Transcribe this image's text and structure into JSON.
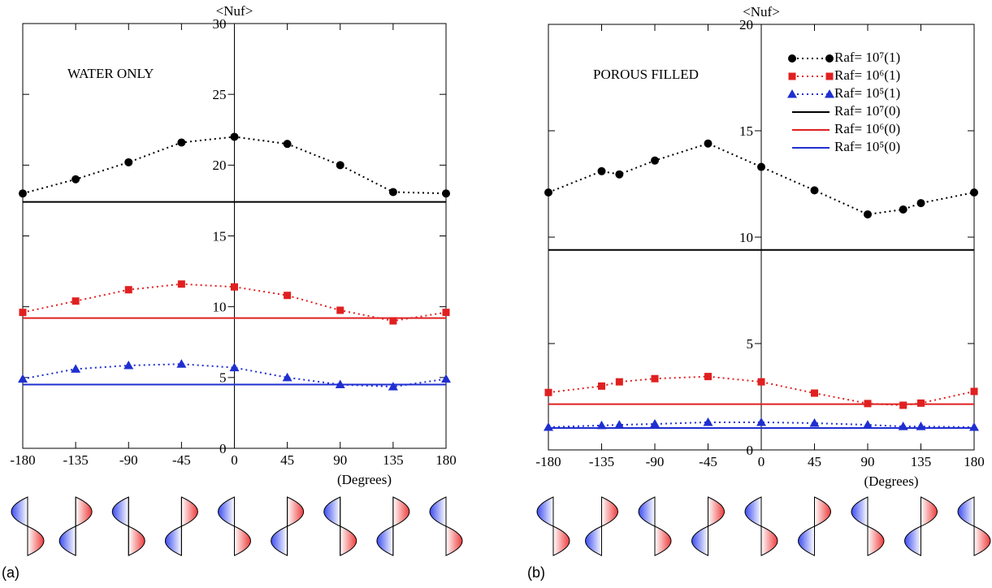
{
  "chart_data": [
    {
      "type": "line",
      "title": "<Nuf>",
      "xlabel": "(Degrees)",
      "annotation": "WATER ONLY",
      "panel_label": "(a)",
      "xlim": [
        -180,
        180
      ],
      "ylim": [
        0,
        30
      ],
      "xticks": [
        -180,
        -135,
        -90,
        -45,
        0,
        45,
        90,
        135,
        180
      ],
      "yticks": [
        0,
        5,
        10,
        15,
        20,
        25,
        30
      ],
      "x": [
        -180,
        -135,
        -90,
        -45,
        0,
        45,
        90,
        135,
        180
      ],
      "series": [
        {
          "color": "#000000",
          "marker": "circle",
          "values": [
            18.0,
            19.0,
            20.2,
            21.6,
            22.0,
            21.5,
            20.0,
            18.1,
            18.0
          ]
        },
        {
          "color": "#e02020",
          "marker": "square",
          "values": [
            9.6,
            10.4,
            11.2,
            11.6,
            11.4,
            10.8,
            9.75,
            9.0,
            9.6
          ]
        },
        {
          "color": "#1f2fd0",
          "marker": "triangle",
          "values": [
            4.9,
            5.6,
            5.85,
            5.95,
            5.7,
            5.0,
            4.5,
            4.35,
            4.9
          ]
        },
        {
          "color": "#000000",
          "value": 17.4
        },
        {
          "color": "#e02020",
          "value": 9.2
        },
        {
          "color": "#1f2fd0",
          "value": 4.5
        }
      ]
    },
    {
      "type": "line",
      "title": "<Nuf>",
      "xlabel": "(Degrees)",
      "annotation": "POROUS FILLED",
      "panel_label": "(b)",
      "xlim": [
        -180,
        180
      ],
      "ylim": [
        0,
        20
      ],
      "xticks": [
        -180,
        -135,
        -90,
        -45,
        0,
        45,
        90,
        135,
        180
      ],
      "yticks": [
        0,
        5,
        10,
        15,
        20
      ],
      "x": [
        -180,
        -135,
        -120,
        -90,
        -45,
        0,
        45,
        90,
        120,
        135,
        180
      ],
      "series": [
        {
          "name": "Raf= 10⁷(1)",
          "color": "#000000",
          "marker": "circle",
          "values": [
            12.1,
            13.1,
            12.95,
            13.6,
            14.4,
            13.3,
            12.2,
            11.07,
            11.3,
            11.6,
            12.1
          ]
        },
        {
          "name": "Raf= 10⁶(1)",
          "color": "#e02020",
          "marker": "square",
          "values": [
            2.7,
            3.0,
            3.2,
            3.35,
            3.45,
            3.2,
            2.67,
            2.18,
            2.1,
            2.2,
            2.75
          ]
        },
        {
          "name": "Raf= 10⁵(1)",
          "color": "#1f2fd0",
          "marker": "triangle",
          "values": [
            1.07,
            1.15,
            1.18,
            1.22,
            1.3,
            1.3,
            1.26,
            1.18,
            1.1,
            1.1,
            1.07
          ]
        },
        {
          "name": "Raf= 10⁷(0)",
          "color": "#000000",
          "value": 9.4
        },
        {
          "name": "Raf= 10⁶(0)",
          "color": "#e02020",
          "value": 2.15
        },
        {
          "name": "Raf= 10⁵(0)",
          "color": "#1f2fd0",
          "value": 1.03
        }
      ]
    }
  ]
}
